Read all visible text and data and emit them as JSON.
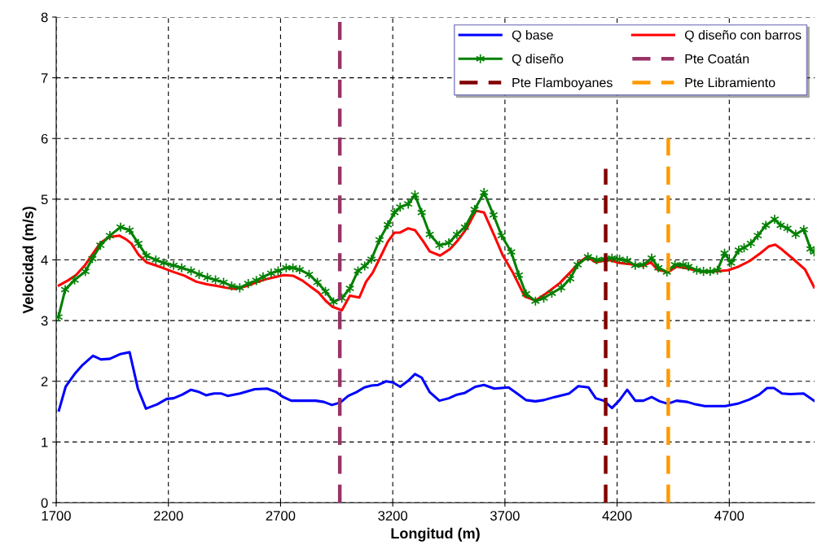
{
  "chart_data": {
    "type": "line",
    "xlabel": "Longitud (m)",
    "ylabel": "Velocidad (m/s)",
    "xlim": [
      1700,
      5080
    ],
    "ylim": [
      0,
      8
    ],
    "xticks": [
      1700,
      2200,
      2700,
      3200,
      3700,
      4200,
      4700
    ],
    "yticks": [
      0,
      1,
      2,
      3,
      4,
      5,
      6,
      7,
      8
    ],
    "grid": true,
    "legend": "top right",
    "series": [
      {
        "name": "Q base",
        "color": "#0000ff",
        "x": [
          1712,
          1742,
          1782,
          1818,
          1864,
          1899,
          1939,
          1987,
          2027,
          2064,
          2100,
          2150,
          2193,
          2223,
          2262,
          2301,
          2332,
          2368,
          2404,
          2434,
          2464,
          2519,
          2585,
          2640,
          2682,
          2712,
          2748,
          2803,
          2857,
          2893,
          2929,
          2966,
          3002,
          3038,
          3074,
          3105,
          3135,
          3171,
          3201,
          3233,
          3269,
          3299,
          3329,
          3365,
          3408,
          3450,
          3486,
          3522,
          3568,
          3607,
          3653,
          3716,
          3758,
          3794,
          3836,
          3873,
          3921,
          3987,
          4027,
          4072,
          4105,
          4141,
          4177,
          4211,
          4245,
          4281,
          4317,
          4354,
          4390,
          4426,
          4465,
          4513,
          4549,
          4591,
          4682,
          4737,
          4790,
          4833,
          4869,
          4899,
          4935,
          4971,
          5031,
          5078
        ],
        "values": [
          1.52,
          1.91,
          2.12,
          2.27,
          2.42,
          2.36,
          2.37,
          2.45,
          2.48,
          1.88,
          1.55,
          1.62,
          1.71,
          1.72,
          1.78,
          1.86,
          1.83,
          1.77,
          1.8,
          1.8,
          1.76,
          1.8,
          1.87,
          1.88,
          1.82,
          1.74,
          1.68,
          1.68,
          1.68,
          1.66,
          1.61,
          1.65,
          1.76,
          1.82,
          1.9,
          1.93,
          1.94,
          2.0,
          1.98,
          1.91,
          2.01,
          2.12,
          2.06,
          1.82,
          1.68,
          1.72,
          1.78,
          1.81,
          1.91,
          1.94,
          1.88,
          1.9,
          1.79,
          1.69,
          1.67,
          1.69,
          1.74,
          1.8,
          1.92,
          1.9,
          1.72,
          1.68,
          1.56,
          1.69,
          1.86,
          1.68,
          1.68,
          1.74,
          1.67,
          1.63,
          1.68,
          1.66,
          1.62,
          1.59,
          1.59,
          1.63,
          1.7,
          1.78,
          1.89,
          1.89,
          1.8,
          1.79,
          1.8,
          1.68
        ],
        "marker": "none"
      },
      {
        "name": "Q diseño con barros",
        "color": "#ff0000",
        "x": [
          1712,
          1752,
          1788,
          1830,
          1861,
          1897,
          1939,
          1981,
          2011,
          2035,
          2066,
          2102,
          2144,
          2187,
          2223,
          2271,
          2325,
          2368,
          2416,
          2458,
          2500,
          2550,
          2592,
          2634,
          2677,
          2713,
          2755,
          2797,
          2840,
          2870,
          2900,
          2930,
          2973,
          3009,
          3051,
          3081,
          3111,
          3148,
          3178,
          3208,
          3233,
          3269,
          3299,
          3335,
          3365,
          3411,
          3456,
          3492,
          3528,
          3571,
          3607,
          3655,
          3691,
          3734,
          3788,
          3836,
          3885,
          3945,
          3987,
          4029,
          4065,
          4105,
          4162,
          4211,
          4259,
          4314,
          4350,
          4380,
          4428,
          4465,
          4513,
          4573,
          4634,
          4694,
          4742,
          4790,
          4839,
          4875,
          4905,
          4935,
          4983,
          5038,
          5078
        ],
        "values": [
          3.58,
          3.66,
          3.75,
          3.92,
          4.09,
          4.28,
          4.38,
          4.4,
          4.34,
          4.27,
          4.09,
          3.96,
          3.91,
          3.85,
          3.8,
          3.74,
          3.64,
          3.6,
          3.57,
          3.54,
          3.52,
          3.57,
          3.63,
          3.68,
          3.72,
          3.75,
          3.74,
          3.66,
          3.54,
          3.46,
          3.33,
          3.23,
          3.17,
          3.41,
          3.38,
          3.64,
          3.79,
          4.07,
          4.3,
          4.45,
          4.45,
          4.52,
          4.49,
          4.31,
          4.14,
          4.07,
          4.18,
          4.33,
          4.51,
          4.81,
          4.78,
          4.38,
          4.07,
          3.8,
          3.4,
          3.33,
          3.45,
          3.62,
          3.78,
          3.95,
          4.05,
          3.96,
          4.0,
          3.95,
          3.93,
          3.9,
          3.96,
          3.84,
          3.8,
          3.89,
          3.86,
          3.81,
          3.81,
          3.83,
          3.89,
          3.98,
          4.11,
          4.22,
          4.25,
          4.17,
          4.02,
          3.84,
          3.55
        ],
        "marker": "none"
      },
      {
        "name": "Q diseño",
        "color": "#008000",
        "x": [
          1710,
          1740,
          1782,
          1830,
          1861,
          1897,
          1939,
          1987,
          2027,
          2066,
          2102,
          2144,
          2180,
          2223,
          2259,
          2301,
          2337,
          2374,
          2410,
          2446,
          2482,
          2518,
          2556,
          2592,
          2622,
          2658,
          2689,
          2725,
          2755,
          2785,
          2827,
          2864,
          2900,
          2936,
          2973,
          3009,
          3045,
          3075,
          3105,
          3141,
          3178,
          3208,
          3233,
          3269,
          3299,
          3329,
          3365,
          3408,
          3450,
          3486,
          3522,
          3565,
          3607,
          3649,
          3685,
          3728,
          3762,
          3794,
          3836,
          3873,
          3909,
          3951,
          3991,
          4024,
          4070,
          4109,
          4145,
          4177,
          4211,
          4245,
          4281,
          4317,
          4354,
          4384,
          4422,
          4458,
          4494,
          4518,
          4555,
          4585,
          4615,
          4647,
          4679,
          4708,
          4742,
          4766,
          4796,
          4827,
          4863,
          4902,
          4929,
          4959,
          4996,
          5032,
          5062,
          5078
        ],
        "values": [
          3.06,
          3.51,
          3.67,
          3.81,
          4.02,
          4.24,
          4.4,
          4.54,
          4.49,
          4.27,
          4.07,
          4.0,
          3.95,
          3.91,
          3.87,
          3.82,
          3.76,
          3.71,
          3.67,
          3.63,
          3.57,
          3.54,
          3.61,
          3.66,
          3.72,
          3.78,
          3.82,
          3.87,
          3.87,
          3.84,
          3.76,
          3.63,
          3.48,
          3.31,
          3.37,
          3.53,
          3.82,
          3.9,
          4.01,
          4.33,
          4.58,
          4.78,
          4.87,
          4.92,
          5.07,
          4.78,
          4.42,
          4.24,
          4.28,
          4.42,
          4.54,
          4.83,
          5.11,
          4.74,
          4.4,
          4.13,
          3.75,
          3.44,
          3.32,
          3.37,
          3.45,
          3.54,
          3.69,
          3.92,
          4.05,
          4.0,
          4.01,
          4.03,
          4.01,
          3.99,
          3.91,
          3.92,
          4.03,
          3.87,
          3.8,
          3.92,
          3.92,
          3.89,
          3.83,
          3.81,
          3.81,
          3.83,
          4.11,
          3.95,
          4.16,
          4.2,
          4.27,
          4.4,
          4.57,
          4.67,
          4.57,
          4.52,
          4.42,
          4.5,
          4.18,
          4.13
        ],
        "marker": "cross"
      },
      {
        "name": "Pte Coatán",
        "color": "#993366",
        "x": [
          2964,
          2964
        ],
        "values": [
          0,
          8
        ],
        "line_style": "dashed",
        "marker": "none"
      },
      {
        "name": "Pte Flamboyanes",
        "color": "#800000",
        "x": [
          4149,
          4149
        ],
        "values": [
          0,
          5.5
        ],
        "line_style": "dashed",
        "marker": "none"
      },
      {
        "name": "Pte Libramiento",
        "color": "#ff9900",
        "x": [
          4428,
          4428
        ],
        "values": [
          0,
          6
        ],
        "line_style": "dashed",
        "marker": "none"
      }
    ]
  }
}
